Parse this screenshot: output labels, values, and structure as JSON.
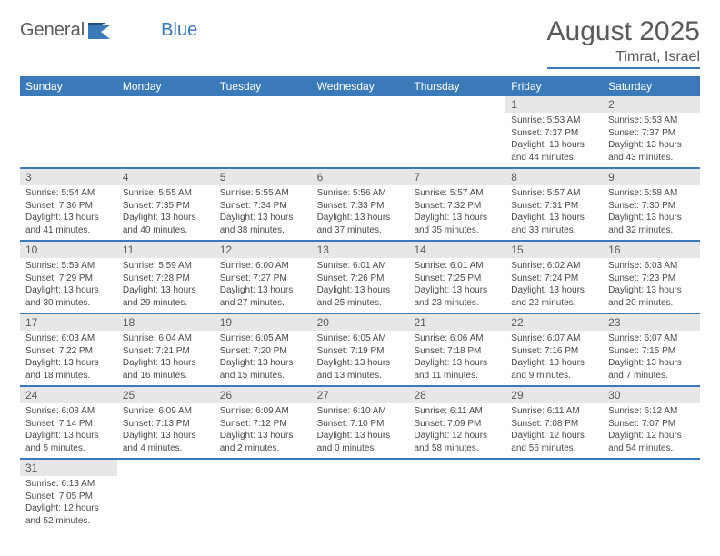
{
  "logo": {
    "text1": "General",
    "text2": "Blue"
  },
  "title": "August 2025",
  "location": "Timrat, Israel",
  "colors": {
    "header_bg": "#3b7ab8",
    "header_text": "#ffffff",
    "daynum_bg": "#e7e7e7",
    "text": "#5a5a5a",
    "body_text": "#4a4a4a",
    "page_bg": "#ffffff"
  },
  "typography": {
    "title_fontsize": 30,
    "location_fontsize": 16,
    "dayheader_fontsize": 12,
    "daynum_fontsize": 12,
    "daytext_fontsize": 10
  },
  "layout": {
    "columns": 7,
    "rows": 6
  },
  "dayHeaders": [
    "Sunday",
    "Monday",
    "Tuesday",
    "Wednesday",
    "Thursday",
    "Friday",
    "Saturday"
  ],
  "weeks": [
    [
      null,
      null,
      null,
      null,
      null,
      {
        "num": "1",
        "sunrise": "5:53 AM",
        "sunset": "7:37 PM",
        "daylight": "13 hours and 44 minutes."
      },
      {
        "num": "2",
        "sunrise": "5:53 AM",
        "sunset": "7:37 PM",
        "daylight": "13 hours and 43 minutes."
      }
    ],
    [
      {
        "num": "3",
        "sunrise": "5:54 AM",
        "sunset": "7:36 PM",
        "daylight": "13 hours and 41 minutes."
      },
      {
        "num": "4",
        "sunrise": "5:55 AM",
        "sunset": "7:35 PM",
        "daylight": "13 hours and 40 minutes."
      },
      {
        "num": "5",
        "sunrise": "5:55 AM",
        "sunset": "7:34 PM",
        "daylight": "13 hours and 38 minutes."
      },
      {
        "num": "6",
        "sunrise": "5:56 AM",
        "sunset": "7:33 PM",
        "daylight": "13 hours and 37 minutes."
      },
      {
        "num": "7",
        "sunrise": "5:57 AM",
        "sunset": "7:32 PM",
        "daylight": "13 hours and 35 minutes."
      },
      {
        "num": "8",
        "sunrise": "5:57 AM",
        "sunset": "7:31 PM",
        "daylight": "13 hours and 33 minutes."
      },
      {
        "num": "9",
        "sunrise": "5:58 AM",
        "sunset": "7:30 PM",
        "daylight": "13 hours and 32 minutes."
      }
    ],
    [
      {
        "num": "10",
        "sunrise": "5:59 AM",
        "sunset": "7:29 PM",
        "daylight": "13 hours and 30 minutes."
      },
      {
        "num": "11",
        "sunrise": "5:59 AM",
        "sunset": "7:28 PM",
        "daylight": "13 hours and 29 minutes."
      },
      {
        "num": "12",
        "sunrise": "6:00 AM",
        "sunset": "7:27 PM",
        "daylight": "13 hours and 27 minutes."
      },
      {
        "num": "13",
        "sunrise": "6:01 AM",
        "sunset": "7:26 PM",
        "daylight": "13 hours and 25 minutes."
      },
      {
        "num": "14",
        "sunrise": "6:01 AM",
        "sunset": "7:25 PM",
        "daylight": "13 hours and 23 minutes."
      },
      {
        "num": "15",
        "sunrise": "6:02 AM",
        "sunset": "7:24 PM",
        "daylight": "13 hours and 22 minutes."
      },
      {
        "num": "16",
        "sunrise": "6:03 AM",
        "sunset": "7:23 PM",
        "daylight": "13 hours and 20 minutes."
      }
    ],
    [
      {
        "num": "17",
        "sunrise": "6:03 AM",
        "sunset": "7:22 PM",
        "daylight": "13 hours and 18 minutes."
      },
      {
        "num": "18",
        "sunrise": "6:04 AM",
        "sunset": "7:21 PM",
        "daylight": "13 hours and 16 minutes."
      },
      {
        "num": "19",
        "sunrise": "6:05 AM",
        "sunset": "7:20 PM",
        "daylight": "13 hours and 15 minutes."
      },
      {
        "num": "20",
        "sunrise": "6:05 AM",
        "sunset": "7:19 PM",
        "daylight": "13 hours and 13 minutes."
      },
      {
        "num": "21",
        "sunrise": "6:06 AM",
        "sunset": "7:18 PM",
        "daylight": "13 hours and 11 minutes."
      },
      {
        "num": "22",
        "sunrise": "6:07 AM",
        "sunset": "7:16 PM",
        "daylight": "13 hours and 9 minutes."
      },
      {
        "num": "23",
        "sunrise": "6:07 AM",
        "sunset": "7:15 PM",
        "daylight": "13 hours and 7 minutes."
      }
    ],
    [
      {
        "num": "24",
        "sunrise": "6:08 AM",
        "sunset": "7:14 PM",
        "daylight": "13 hours and 5 minutes."
      },
      {
        "num": "25",
        "sunrise": "6:09 AM",
        "sunset": "7:13 PM",
        "daylight": "13 hours and 4 minutes."
      },
      {
        "num": "26",
        "sunrise": "6:09 AM",
        "sunset": "7:12 PM",
        "daylight": "13 hours and 2 minutes."
      },
      {
        "num": "27",
        "sunrise": "6:10 AM",
        "sunset": "7:10 PM",
        "daylight": "13 hours and 0 minutes."
      },
      {
        "num": "28",
        "sunrise": "6:11 AM",
        "sunset": "7:09 PM",
        "daylight": "12 hours and 58 minutes."
      },
      {
        "num": "29",
        "sunrise": "6:11 AM",
        "sunset": "7:08 PM",
        "daylight": "12 hours and 56 minutes."
      },
      {
        "num": "30",
        "sunrise": "6:12 AM",
        "sunset": "7:07 PM",
        "daylight": "12 hours and 54 minutes."
      }
    ],
    [
      {
        "num": "31",
        "sunrise": "6:13 AM",
        "sunset": "7:05 PM",
        "daylight": "12 hours and 52 minutes."
      },
      null,
      null,
      null,
      null,
      null,
      null
    ]
  ],
  "labels": {
    "sunrise": "Sunrise: ",
    "sunset": "Sunset: ",
    "daylight": "Daylight: "
  }
}
